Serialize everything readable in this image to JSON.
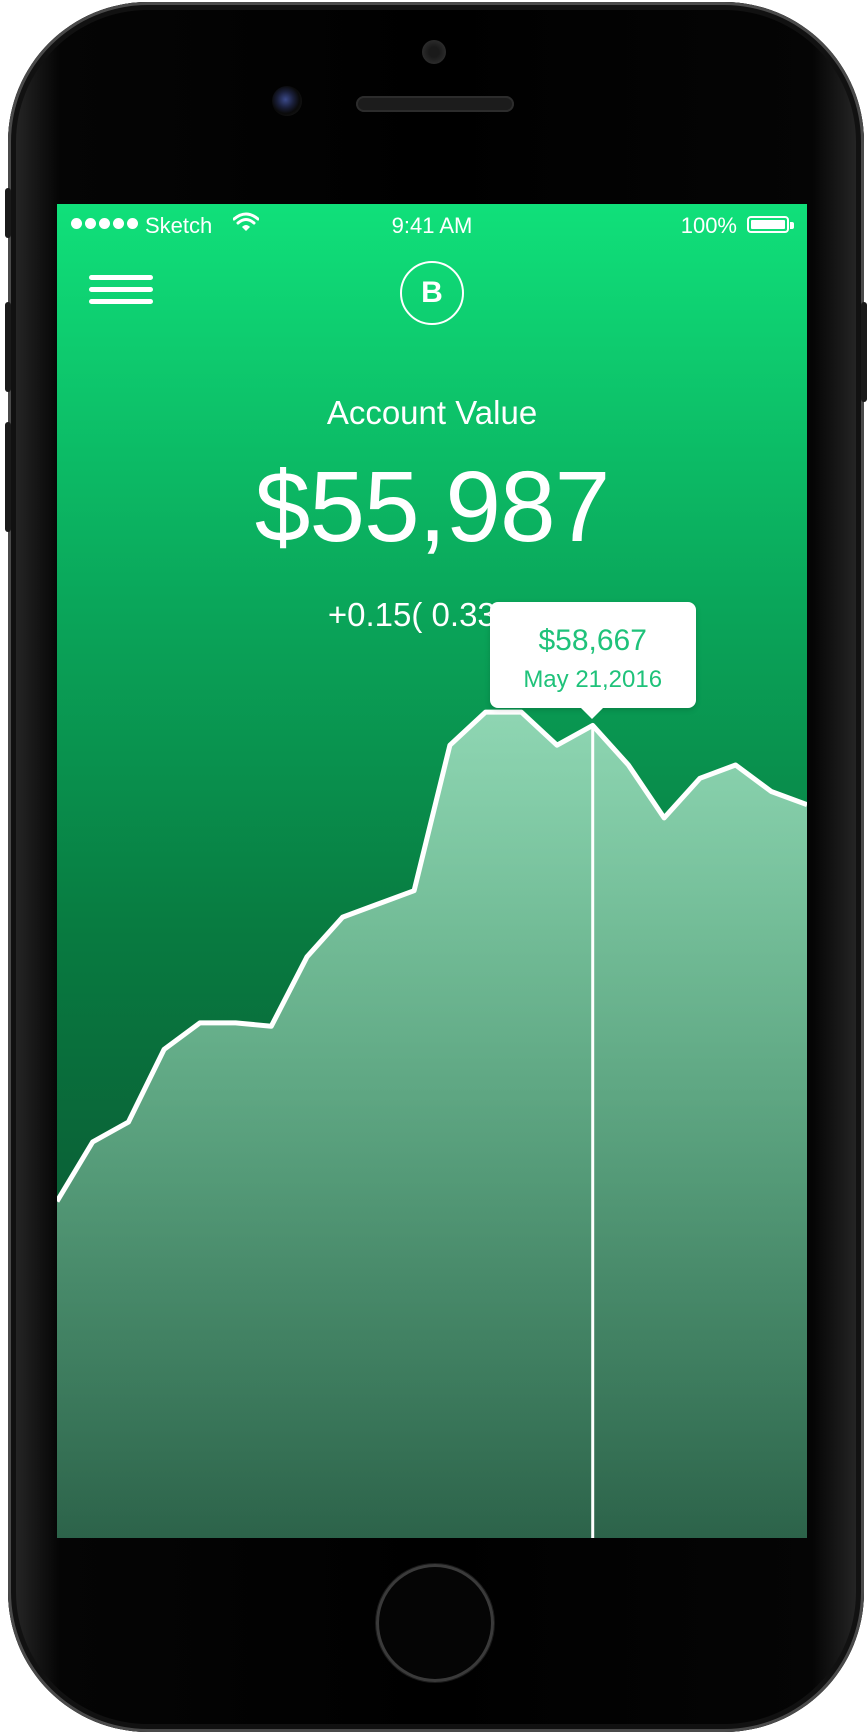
{
  "status_bar": {
    "carrier": "Sketch",
    "time": "9:41 AM",
    "battery": "100%"
  },
  "header": {
    "menu_icon": "hamburger-icon",
    "logo_letter": "B"
  },
  "account": {
    "label": "Account Value",
    "value": "$55,987",
    "change": "+0.15( 0.33%)"
  },
  "tooltip": {
    "value": "$58,667",
    "date": "May 21,2016"
  },
  "colors": {
    "accent": "#1fc27a",
    "gradient_top": "#10e07a",
    "gradient_bottom": "#114a30"
  },
  "chart_data": {
    "type": "area",
    "line_color": "#ffffff",
    "fill_color": "#c8f0dc",
    "selected_index": 15,
    "values": [
      14,
      23,
      26,
      37,
      41,
      41,
      40.5,
      51,
      57,
      59,
      61,
      83,
      88,
      88,
      83,
      86,
      80,
      72,
      78,
      80,
      76,
      74
    ]
  }
}
